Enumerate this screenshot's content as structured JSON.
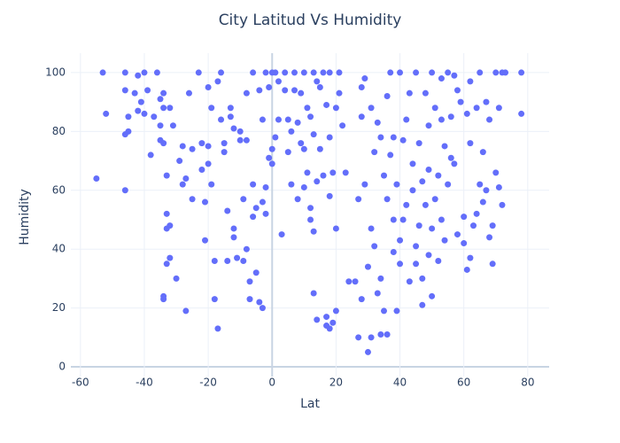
{
  "chart_data": {
    "type": "scatter",
    "title": "City Latitud Vs Humidity",
    "x_label": "Lat",
    "y_label": "Humidity",
    "color": "#636efa",
    "grid": true,
    "xlim": [
      -63,
      86.7
    ],
    "ylim": [
      -3.3,
      106.6
    ],
    "xticks": [
      -60,
      -40,
      -20,
      0,
      20,
      40,
      60,
      80
    ],
    "yticks": [
      0,
      20,
      40,
      60,
      80,
      100
    ],
    "x": [
      -55,
      -53,
      -52,
      -46,
      -46,
      -46,
      -45,
      -45,
      -46,
      -43,
      -42,
      -42,
      -41,
      -40,
      -40,
      -39,
      -38,
      -37,
      -36,
      -35,
      -35,
      -35,
      -34,
      -34,
      -34,
      -34,
      -34,
      -33,
      -33,
      -33,
      -33,
      -32,
      -32,
      -32,
      -31,
      -30,
      -29,
      -28,
      -28,
      -27,
      -27,
      -26,
      -25,
      -25,
      -23,
      -22,
      -22,
      -21,
      -21,
      -20,
      -20,
      -20,
      -19,
      -19,
      -18,
      -18,
      -17,
      -17,
      -16,
      -16,
      -15,
      -15,
      -14,
      -14,
      -13,
      -13,
      -12,
      -12,
      -12,
      -11,
      -10,
      -10,
      -9,
      -9,
      -8,
      -8,
      -8,
      -7,
      -7,
      -6,
      -6,
      -6,
      -5,
      -5,
      -4,
      -4,
      -3,
      -3,
      -3,
      -2,
      -2,
      -2,
      -1,
      -1,
      0,
      0,
      0,
      1,
      1,
      2,
      2,
      3,
      4,
      4,
      5,
      5,
      6,
      6,
      7,
      7,
      8,
      8,
      9,
      9,
      10,
      10,
      10,
      11,
      11,
      12,
      12,
      12,
      13,
      13,
      13,
      13,
      14,
      14,
      14,
      15,
      15,
      16,
      16,
      17,
      17,
      17,
      18,
      18,
      18,
      18,
      19,
      19,
      20,
      20,
      20,
      21,
      21,
      22,
      23,
      24,
      26,
      27,
      27,
      28,
      28,
      28,
      29,
      29,
      30,
      30,
      31,
      31,
      31,
      32,
      32,
      33,
      33,
      34,
      34,
      34,
      35,
      35,
      36,
      36,
      36,
      37,
      37,
      38,
      38,
      38,
      39,
      39,
      40,
      40,
      40,
      41,
      41,
      42,
      42,
      43,
      43,
      44,
      44,
      45,
      45,
      45,
      46,
      46,
      47,
      47,
      47,
      48,
      48,
      49,
      49,
      49,
      50,
      50,
      50,
      51,
      51,
      52,
      52,
      53,
      53,
      53,
      54,
      54,
      55,
      55,
      56,
      56,
      57,
      57,
      58,
      58,
      59,
      60,
      60,
      61,
      61,
      62,
      62,
      62,
      63,
      64,
      64,
      65,
      65,
      66,
      66,
      67,
      67,
      68,
      68,
      69,
      69,
      70,
      70,
      71,
      71,
      72,
      72,
      73,
      78,
      78
    ],
    "values": [
      64,
      100,
      86,
      100,
      94,
      79,
      80,
      85,
      60,
      93,
      99,
      87,
      90,
      100,
      86,
      94,
      72,
      85,
      100,
      91,
      82,
      77,
      93,
      88,
      76,
      24,
      23,
      35,
      47,
      52,
      65,
      88,
      37,
      48,
      82,
      30,
      70,
      62,
      75,
      19,
      64,
      93,
      57,
      74,
      100,
      76,
      67,
      43,
      56,
      75,
      69,
      95,
      62,
      88,
      36,
      23,
      13,
      97,
      84,
      100,
      76,
      73,
      53,
      36,
      88,
      85,
      47,
      44,
      81,
      37,
      80,
      77,
      57,
      36,
      93,
      77,
      40,
      29,
      23,
      100,
      51,
      62,
      54,
      32,
      94,
      22,
      20,
      84,
      56,
      100,
      61,
      52,
      71,
      95,
      69,
      74,
      100,
      78,
      100,
      84,
      97,
      45,
      100,
      94,
      84,
      73,
      80,
      62,
      100,
      94,
      83,
      57,
      93,
      76,
      100,
      74,
      61,
      88,
      66,
      54,
      50,
      85,
      100,
      25,
      46,
      79,
      16,
      97,
      63,
      95,
      74,
      65,
      100,
      17,
      14,
      89,
      13,
      78,
      58,
      100,
      15,
      66,
      19,
      47,
      88,
      93,
      100,
      82,
      66,
      29,
      29,
      10,
      57,
      85,
      95,
      23,
      98,
      62,
      34,
      5,
      10,
      88,
      47,
      73,
      41,
      83,
      25,
      11,
      30,
      78,
      19,
      65,
      11,
      92,
      57,
      100,
      72,
      39,
      78,
      50,
      19,
      62,
      43,
      100,
      35,
      77,
      50,
      84,
      55,
      93,
      29,
      60,
      69,
      41,
      100,
      35,
      48,
      76,
      21,
      63,
      30,
      93,
      55,
      82,
      38,
      67,
      24,
      100,
      47,
      88,
      57,
      36,
      65,
      84,
      98,
      50,
      43,
      75,
      100,
      62,
      85,
      71,
      99,
      69,
      94,
      45,
      90,
      51,
      42,
      33,
      86,
      37,
      76,
      97,
      48,
      52,
      88,
      100,
      62,
      73,
      56,
      90,
      60,
      44,
      84,
      35,
      48,
      100,
      66,
      88,
      61,
      55,
      100,
      100,
      100,
      86
    ]
  }
}
